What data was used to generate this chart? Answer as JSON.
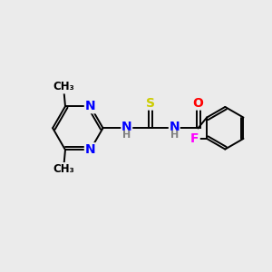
{
  "bg_color": "#ebebeb",
  "bond_color": "#000000",
  "atom_colors": {
    "N": "#0000ff",
    "S": "#cccc00",
    "O": "#ff0000",
    "F": "#ff00ff",
    "C": "#000000",
    "H": "#808080"
  },
  "lw": 1.4,
  "fs": 10,
  "fs_small": 9
}
